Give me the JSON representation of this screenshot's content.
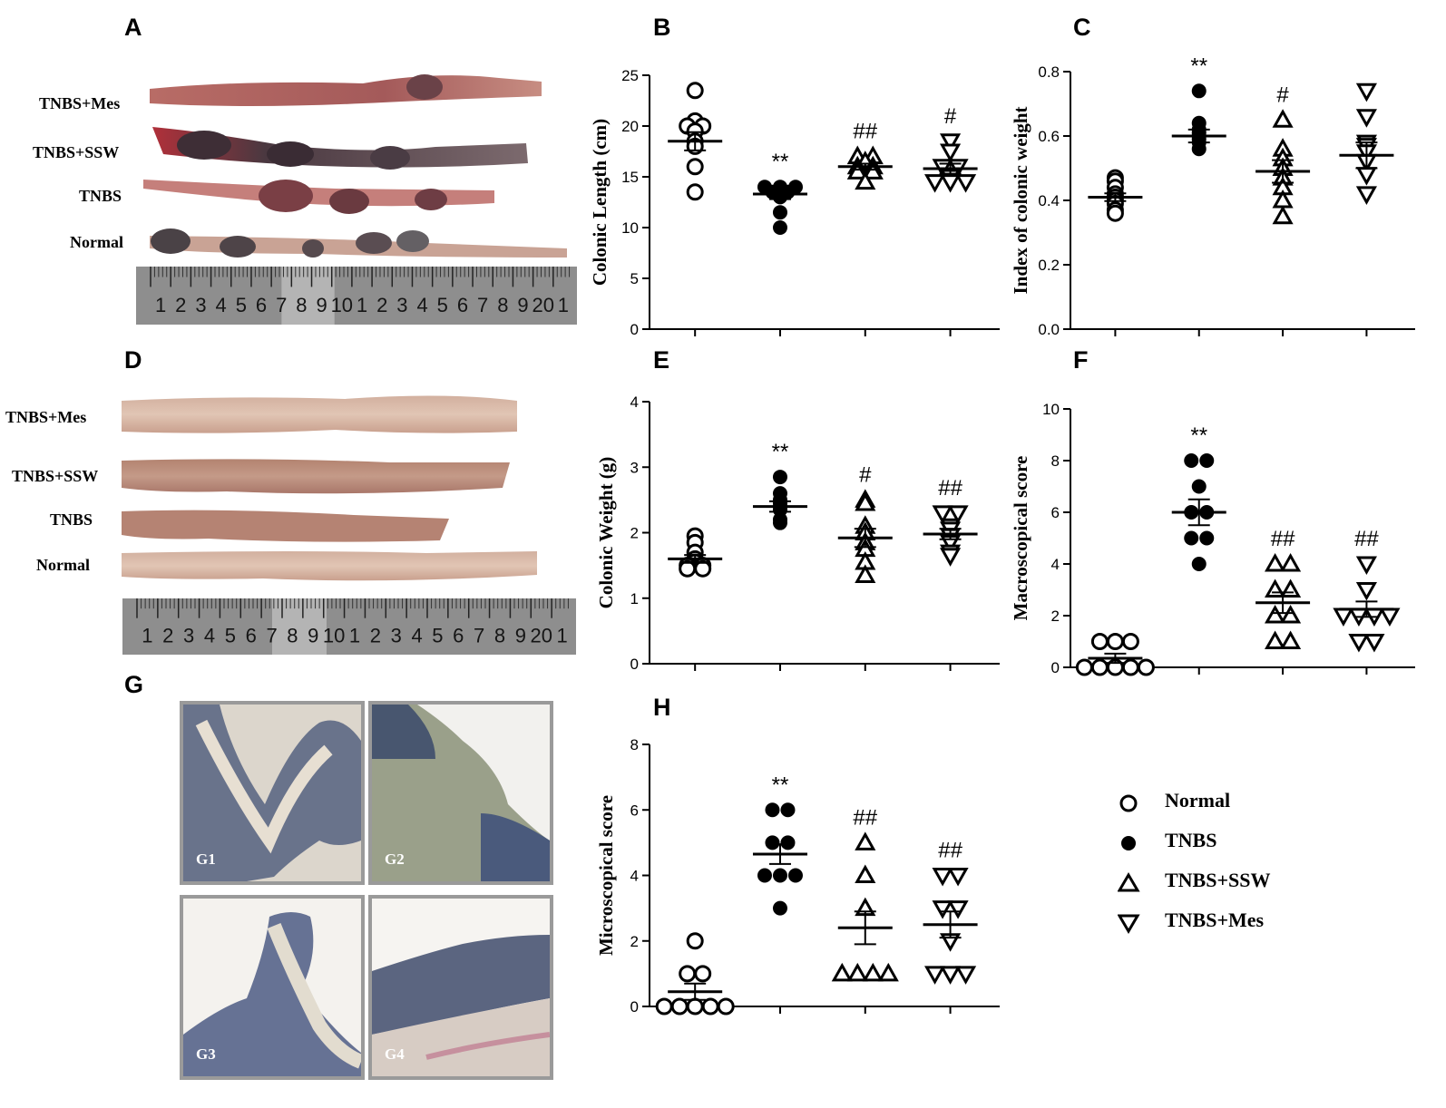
{
  "panels": {
    "A": "A",
    "B": "B",
    "C": "C",
    "D": "D",
    "E": "E",
    "F": "F",
    "G": "G",
    "H": "H"
  },
  "colon_labels_a": [
    "TNBS+Mes",
    "TNBS+SSW",
    "TNBS",
    "Normal"
  ],
  "colon_labels_d": [
    "TNBS+Mes",
    "TNBS+SSW",
    "TNBS",
    "Normal"
  ],
  "ruler_numbers": [
    "1",
    "2",
    "3",
    "4",
    "5",
    "6",
    "7",
    "8",
    "9",
    "10",
    "1",
    "2",
    "3",
    "4",
    "5",
    "6",
    "7",
    "8",
    "9",
    "20",
    "1"
  ],
  "histology_labels": [
    "G1",
    "G2",
    "G3",
    "G4"
  ],
  "legend": [
    {
      "name": "Normal",
      "marker": "open-circle"
    },
    {
      "name": "TNBS",
      "marker": "filled-circle"
    },
    {
      "name": "TNBS+SSW",
      "marker": "open-triangle"
    },
    {
      "name": "TNBS+Mes",
      "marker": "open-inverted-triangle"
    }
  ],
  "colors": {
    "marker": "#000000",
    "tissue_dark": "#4a3a40",
    "tissue_pink": "#c98e86",
    "tissue_pale": "#d9b7a5",
    "ruler": "#8e8e8e",
    "histo_stain": "#4f5a7a"
  },
  "chart_data": [
    {
      "id": "B",
      "type": "scatter",
      "ylabel": "Colonic Length (cm)",
      "ylim": [
        0,
        25
      ],
      "yticks": [
        "0",
        "5",
        "10",
        "15",
        "20",
        "25"
      ],
      "groups": [
        {
          "marker": "open-circle",
          "values": [
            23.5,
            20.5,
            20,
            20,
            19.5,
            18.5,
            18,
            16,
            13.5
          ],
          "mean": 18.5,
          "sem": 0.9,
          "annotation": ""
        },
        {
          "marker": "filled-circle",
          "values": [
            14,
            14,
            14,
            13.5,
            13.5,
            13,
            11.5,
            10
          ],
          "mean": 13.3,
          "sem": 0.5,
          "annotation": "**"
        },
        {
          "marker": "open-triangle",
          "values": [
            17,
            17,
            16.5,
            16,
            16,
            15.5,
            15.5,
            14.5
          ],
          "mean": 16,
          "sem": 0.3,
          "annotation": "##"
        },
        {
          "marker": "open-inverted-triangle",
          "values": [
            18.5,
            17.5,
            16,
            16,
            15,
            14.5,
            14.5,
            14.5
          ],
          "mean": 15.8,
          "sem": 0.5,
          "annotation": "#"
        }
      ]
    },
    {
      "id": "C",
      "type": "scatter",
      "ylabel": "Index of colonic weight",
      "ylim": [
        0,
        0.8
      ],
      "yticks": [
        "0.0",
        "0.2",
        "0.4",
        "0.6",
        "0.8"
      ],
      "groups": [
        {
          "marker": "open-circle",
          "values": [
            0.47,
            0.46,
            0.44,
            0.42,
            0.41,
            0.4,
            0.39,
            0.37,
            0.36
          ],
          "mean": 0.41,
          "sem": 0.012,
          "annotation": ""
        },
        {
          "marker": "filled-circle",
          "values": [
            0.74,
            0.64,
            0.62,
            0.61,
            0.6,
            0.59,
            0.58,
            0.56
          ],
          "mean": 0.6,
          "sem": 0.02,
          "annotation": "**"
        },
        {
          "marker": "open-triangle",
          "values": [
            0.65,
            0.56,
            0.53,
            0.5,
            0.47,
            0.44,
            0.4,
            0.35
          ],
          "mean": 0.49,
          "sem": 0.035,
          "annotation": "#"
        },
        {
          "marker": "open-inverted-triangle",
          "values": [
            0.74,
            0.66,
            0.58,
            0.57,
            0.55,
            0.52,
            0.48,
            0.42
          ],
          "mean": 0.54,
          "sem": 0.04,
          "annotation": ""
        }
      ]
    },
    {
      "id": "E",
      "type": "scatter",
      "ylabel": "Colonic Weight (g)",
      "ylim": [
        0,
        4
      ],
      "yticks": [
        "0",
        "1",
        "2",
        "3",
        "4"
      ],
      "groups": [
        {
          "marker": "open-circle",
          "values": [
            1.95,
            1.85,
            1.7,
            1.6,
            1.55,
            1.5,
            1.5,
            1.45,
            1.45
          ],
          "mean": 1.6,
          "sem": 0.06,
          "annotation": ""
        },
        {
          "marker": "filled-circle",
          "values": [
            2.85,
            2.6,
            2.5,
            2.45,
            2.4,
            2.35,
            2.2,
            2.15
          ],
          "mean": 2.4,
          "sem": 0.08,
          "annotation": "**"
        },
        {
          "marker": "open-triangle",
          "values": [
            2.5,
            2.45,
            2.1,
            2.0,
            1.85,
            1.75,
            1.55,
            1.35
          ],
          "mean": 1.92,
          "sem": 0.14,
          "annotation": "#"
        },
        {
          "marker": "open-inverted-triangle",
          "values": [
            2.3,
            2.3,
            2.1,
            2.05,
            1.95,
            1.85,
            1.7,
            1.65
          ],
          "mean": 1.98,
          "sem": 0.08,
          "annotation": "##"
        }
      ]
    },
    {
      "id": "F",
      "type": "scatter",
      "ylabel": "Macroscopical score",
      "ylim": [
        0,
        10
      ],
      "yticks": [
        "0",
        "2",
        "4",
        "6",
        "8",
        "10"
      ],
      "groups": [
        {
          "marker": "open-circle",
          "values": [
            1,
            1,
            1,
            0,
            0,
            0,
            0,
            0
          ],
          "mean": 0.35,
          "sem": 0.18,
          "annotation": ""
        },
        {
          "marker": "filled-circle",
          "values": [
            8,
            8,
            7,
            6,
            6,
            5,
            5,
            4
          ],
          "mean": 6,
          "sem": 0.5,
          "annotation": "**"
        },
        {
          "marker": "open-triangle",
          "values": [
            4,
            4,
            3,
            3,
            2,
            2,
            1,
            1
          ],
          "mean": 2.5,
          "sem": 0.4,
          "annotation": "##"
        },
        {
          "marker": "open-inverted-triangle",
          "values": [
            4,
            3,
            2,
            2,
            2,
            2,
            1,
            1
          ],
          "mean": 2.25,
          "sem": 0.3,
          "annotation": "##"
        }
      ]
    },
    {
      "id": "H",
      "type": "scatter",
      "ylabel": "Microscopical score",
      "ylim": [
        0,
        8
      ],
      "yticks": [
        "0",
        "2",
        "4",
        "6",
        "8"
      ],
      "groups": [
        {
          "marker": "open-circle",
          "values": [
            2,
            1,
            1,
            0,
            0,
            0,
            0,
            0
          ],
          "mean": 0.45,
          "sem": 0.25,
          "annotation": ""
        },
        {
          "marker": "filled-circle",
          "values": [
            6,
            6,
            5,
            5,
            4,
            4,
            4,
            3
          ],
          "mean": 4.65,
          "sem": 0.3,
          "annotation": "**"
        },
        {
          "marker": "open-triangle",
          "values": [
            5,
            4,
            3,
            1,
            1,
            1,
            1
          ],
          "mean": 2.4,
          "sem": 0.5,
          "annotation": "##"
        },
        {
          "marker": "open-inverted-triangle",
          "values": [
            4,
            4,
            3,
            3,
            2,
            1,
            1,
            1
          ],
          "mean": 2.5,
          "sem": 0.4,
          "annotation": "##"
        }
      ]
    }
  ]
}
